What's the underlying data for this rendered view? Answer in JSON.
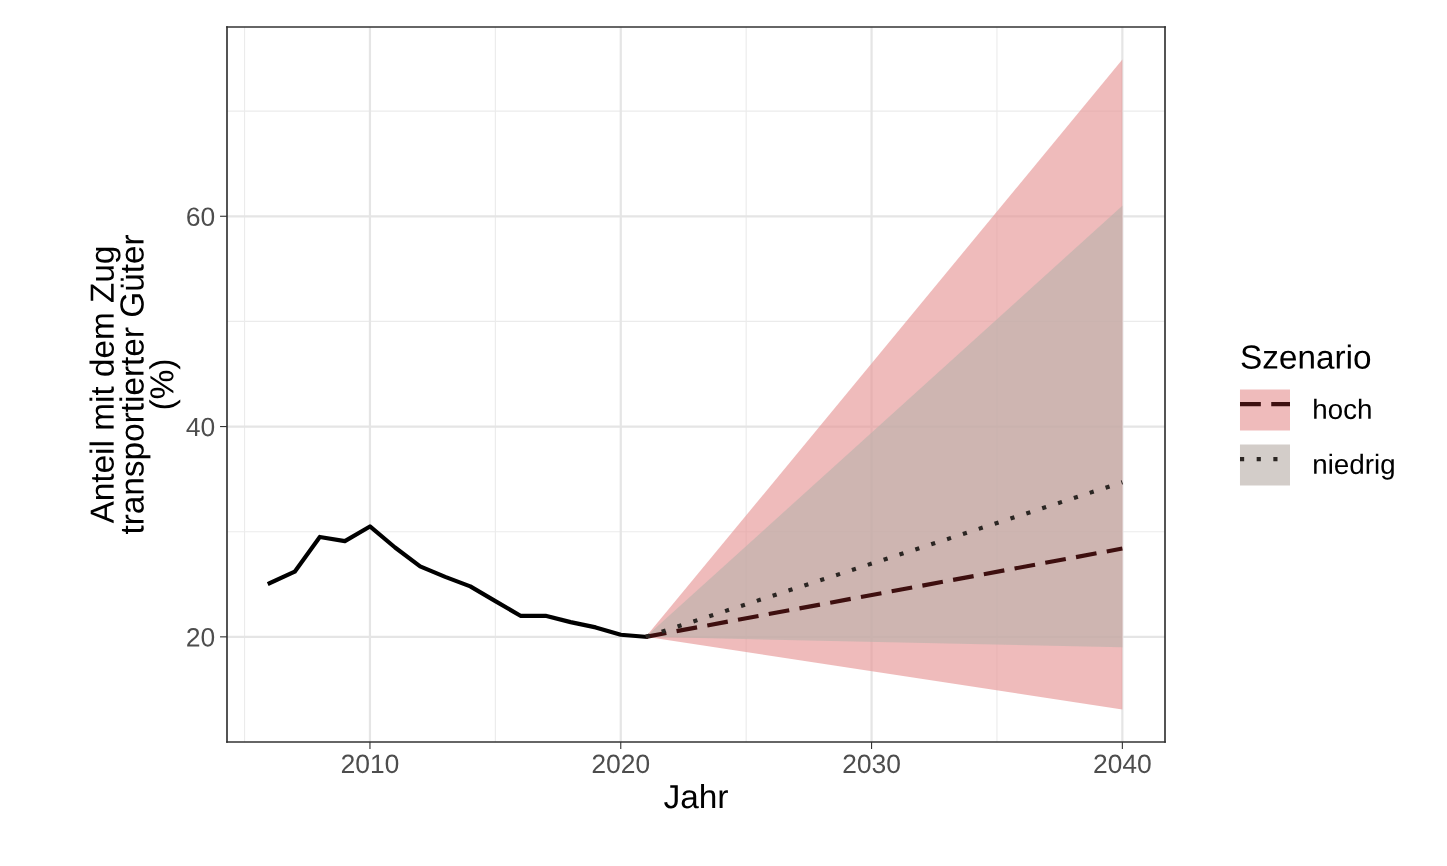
{
  "chart_data": {
    "type": "line",
    "xlabel": "Jahr",
    "ylabel": "Anteil mit dem Zug\ntransportierter Güter\n(%)",
    "legend_title": "Szenario",
    "xlim": [
      2004.3,
      2041.7
    ],
    "ylim": [
      10,
      78
    ],
    "xticks": [
      2010,
      2020,
      2030,
      2040
    ],
    "yticks": [
      20,
      40,
      60
    ],
    "grid": true,
    "legend": "right",
    "series": [
      {
        "color": "#000000",
        "line_style": "solid",
        "x": [
          2006,
          2007,
          2008,
          2009,
          2010,
          2011,
          2012,
          2013,
          2014,
          2015,
          2016,
          2017,
          2018,
          2019,
          2020,
          2021
        ],
        "values": [
          25.1,
          26.2,
          29.5,
          29.1,
          30.5,
          28.5,
          26.7,
          25.7,
          24.8,
          23.4,
          22.0,
          22.0,
          21.4,
          20.9,
          20.2,
          20.0
        ]
      },
      {
        "name": "hoch",
        "color": "#3e0f0f",
        "line_style": "dashed",
        "x": [
          2021,
          2040
        ],
        "values": [
          20,
          28.4
        ],
        "lower": [
          20,
          13.1
        ],
        "upper": [
          20,
          74.9
        ]
      },
      {
        "name": "niedrig",
        "color": "#2b2623",
        "line_style": "dotted",
        "x": [
          2021,
          2040
        ],
        "values": [
          20,
          34.7
        ],
        "lower": [
          20,
          19.0
        ],
        "upper": [
          20,
          61.0
        ]
      }
    ]
  }
}
